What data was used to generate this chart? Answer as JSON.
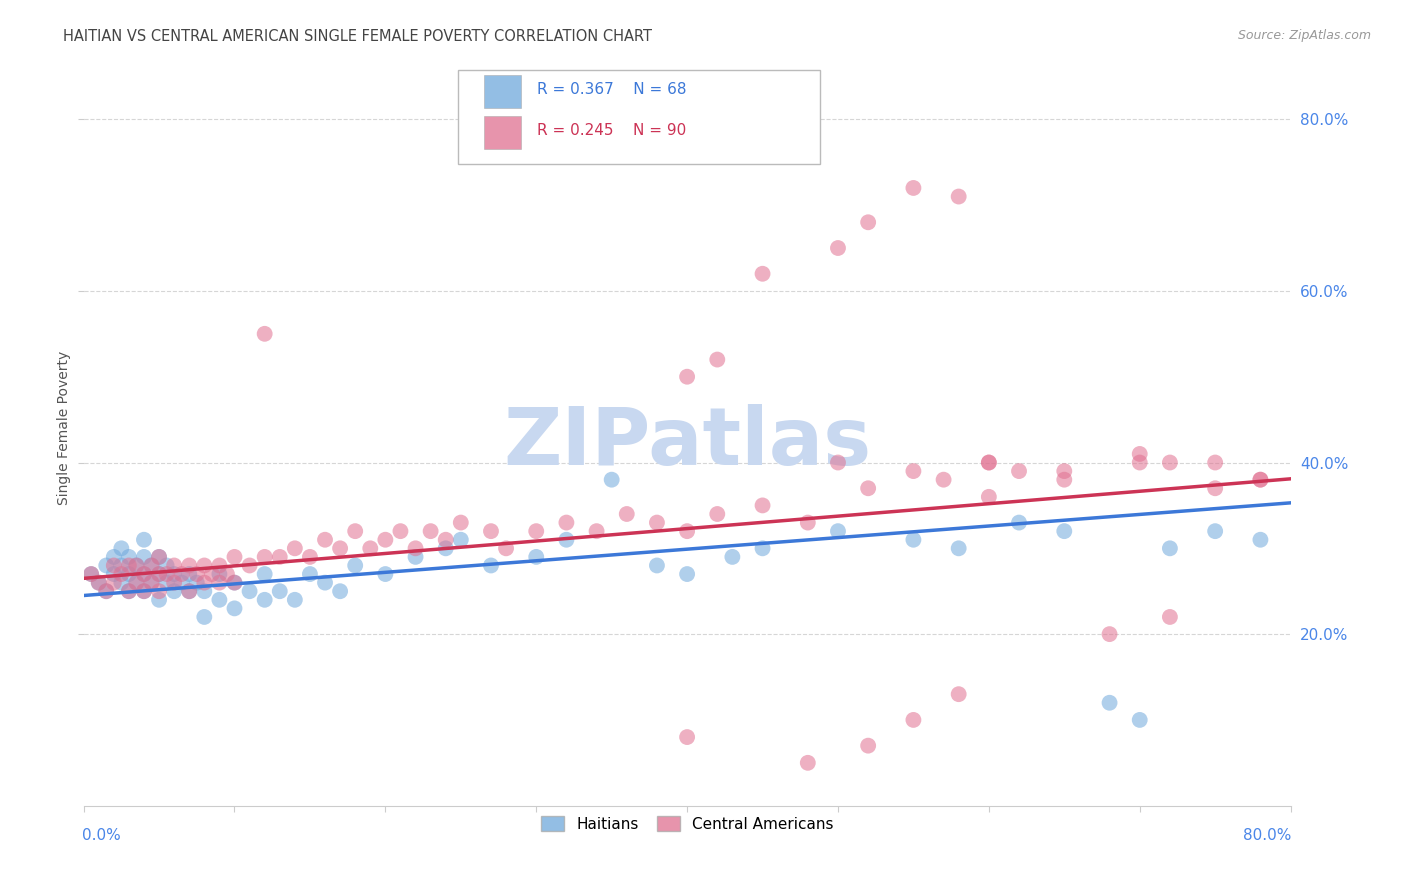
{
  "title": "HAITIAN VS CENTRAL AMERICAN SINGLE FEMALE POVERTY CORRELATION CHART",
  "source": "Source: ZipAtlas.com",
  "ylabel": "Single Female Poverty",
  "right_yticks": [
    "80.0%",
    "60.0%",
    "40.0%",
    "20.0%"
  ],
  "right_ytick_vals": [
    0.8,
    0.6,
    0.4,
    0.2
  ],
  "xlim": [
    0.0,
    0.8
  ],
  "ylim": [
    0.0,
    0.88
  ],
  "haitian_color": "#6fa8dc",
  "central_color": "#e07090",
  "haitian_line_color": "#3c78d8",
  "central_line_color": "#cc3355",
  "background_color": "#ffffff",
  "grid_color": "#cccccc",
  "watermark_zip_color": "#c8d8f0",
  "watermark_atlas_color": "#c8d8f0",
  "title_color": "#444444",
  "source_color": "#999999",
  "axis_label_color": "#4a86e8",
  "legend_border_color": "#aaaaaa",
  "haitians_x": [
    0.005,
    0.01,
    0.015,
    0.015,
    0.02,
    0.02,
    0.025,
    0.025,
    0.025,
    0.03,
    0.03,
    0.03,
    0.035,
    0.035,
    0.04,
    0.04,
    0.04,
    0.04,
    0.045,
    0.045,
    0.05,
    0.05,
    0.05,
    0.055,
    0.055,
    0.06,
    0.06,
    0.065,
    0.07,
    0.07,
    0.075,
    0.08,
    0.08,
    0.09,
    0.09,
    0.1,
    0.1,
    0.11,
    0.12,
    0.12,
    0.13,
    0.14,
    0.15,
    0.16,
    0.17,
    0.18,
    0.2,
    0.22,
    0.24,
    0.25,
    0.27,
    0.3,
    0.32,
    0.35,
    0.38,
    0.4,
    0.43,
    0.45,
    0.5,
    0.55,
    0.58,
    0.62,
    0.65,
    0.68,
    0.7,
    0.72,
    0.75,
    0.78
  ],
  "haitians_y": [
    0.27,
    0.26,
    0.25,
    0.28,
    0.27,
    0.29,
    0.26,
    0.28,
    0.3,
    0.25,
    0.27,
    0.29,
    0.26,
    0.28,
    0.25,
    0.27,
    0.29,
    0.31,
    0.26,
    0.28,
    0.24,
    0.27,
    0.29,
    0.26,
    0.28,
    0.25,
    0.27,
    0.26,
    0.25,
    0.27,
    0.26,
    0.22,
    0.25,
    0.24,
    0.27,
    0.23,
    0.26,
    0.25,
    0.24,
    0.27,
    0.25,
    0.24,
    0.27,
    0.26,
    0.25,
    0.28,
    0.27,
    0.29,
    0.3,
    0.31,
    0.28,
    0.29,
    0.31,
    0.38,
    0.28,
    0.27,
    0.29,
    0.3,
    0.32,
    0.31,
    0.3,
    0.33,
    0.32,
    0.12,
    0.1,
    0.3,
    0.32,
    0.31
  ],
  "central_x": [
    0.005,
    0.01,
    0.015,
    0.02,
    0.02,
    0.025,
    0.03,
    0.03,
    0.035,
    0.035,
    0.04,
    0.04,
    0.045,
    0.045,
    0.05,
    0.05,
    0.05,
    0.055,
    0.06,
    0.06,
    0.065,
    0.07,
    0.07,
    0.075,
    0.08,
    0.08,
    0.085,
    0.09,
    0.09,
    0.095,
    0.1,
    0.1,
    0.11,
    0.12,
    0.12,
    0.13,
    0.14,
    0.15,
    0.16,
    0.17,
    0.18,
    0.19,
    0.2,
    0.21,
    0.22,
    0.23,
    0.24,
    0.25,
    0.27,
    0.28,
    0.3,
    0.32,
    0.34,
    0.36,
    0.38,
    0.4,
    0.42,
    0.45,
    0.48,
    0.5,
    0.52,
    0.55,
    0.57,
    0.6,
    0.62,
    0.65,
    0.68,
    0.7,
    0.72,
    0.75,
    0.78,
    0.4,
    0.42,
    0.45,
    0.5,
    0.52,
    0.55,
    0.58,
    0.6,
    0.65,
    0.7,
    0.72,
    0.75,
    0.78,
    0.4,
    0.48,
    0.52,
    0.55,
    0.58,
    0.6
  ],
  "central_y": [
    0.27,
    0.26,
    0.25,
    0.28,
    0.26,
    0.27,
    0.25,
    0.28,
    0.26,
    0.28,
    0.25,
    0.27,
    0.26,
    0.28,
    0.25,
    0.27,
    0.29,
    0.27,
    0.26,
    0.28,
    0.27,
    0.25,
    0.28,
    0.27,
    0.26,
    0.28,
    0.27,
    0.26,
    0.28,
    0.27,
    0.26,
    0.29,
    0.28,
    0.55,
    0.29,
    0.29,
    0.3,
    0.29,
    0.31,
    0.3,
    0.32,
    0.3,
    0.31,
    0.32,
    0.3,
    0.32,
    0.31,
    0.33,
    0.32,
    0.3,
    0.32,
    0.33,
    0.32,
    0.34,
    0.33,
    0.32,
    0.34,
    0.35,
    0.33,
    0.4,
    0.37,
    0.39,
    0.38,
    0.4,
    0.39,
    0.38,
    0.2,
    0.4,
    0.22,
    0.37,
    0.38,
    0.5,
    0.52,
    0.62,
    0.65,
    0.68,
    0.72,
    0.71,
    0.4,
    0.39,
    0.41,
    0.4,
    0.4,
    0.38,
    0.08,
    0.05,
    0.07,
    0.1,
    0.13,
    0.36
  ]
}
